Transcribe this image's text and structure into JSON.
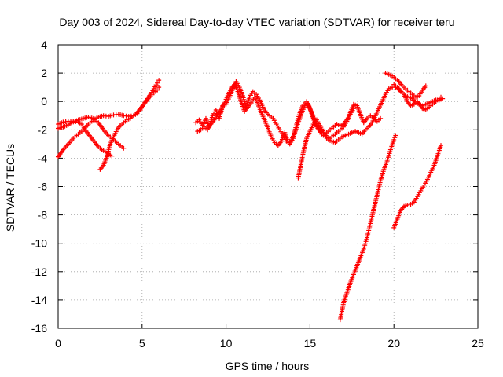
{
  "chart_data": {
    "type": "scatter",
    "title": "Day 003 of 2024, Sidereal Day-to-day VTEC variation (SDTVAR) for receiver teru",
    "xlabel": "GPS time / hours",
    "ylabel": "SDTVAR / TECUs",
    "xlim": [
      0,
      25
    ],
    "ylim": [
      -16,
      4
    ],
    "xticks": [
      0,
      5,
      10,
      15,
      20,
      25
    ],
    "yticks": [
      -16,
      -14,
      -12,
      -10,
      -8,
      -6,
      -4,
      -2,
      0,
      2,
      4
    ],
    "grid": true,
    "marker": "plus",
    "color": "#ff0000",
    "series": [
      {
        "points": [
          [
            0,
            -3.9
          ],
          [
            0.3,
            -3.4
          ],
          [
            0.6,
            -3.0
          ],
          [
            0.9,
            -2.6
          ],
          [
            1.2,
            -2.3
          ],
          [
            1.5,
            -2.0
          ],
          [
            1.8,
            -1.6
          ],
          [
            2.1,
            -1.3
          ],
          [
            2.4,
            -1.1
          ],
          [
            2.7,
            -1.0
          ],
          [
            3.0,
            -1.05
          ],
          [
            3.3,
            -0.95
          ],
          [
            3.6,
            -0.9
          ],
          [
            3.9,
            -1.0
          ],
          [
            4.2,
            -1.05
          ],
          [
            4.5,
            -1.0
          ],
          [
            4.7,
            -0.85
          ],
          [
            4.9,
            -0.6
          ],
          [
            5.1,
            -0.2
          ],
          [
            5.3,
            0.2
          ],
          [
            5.5,
            0.5
          ],
          [
            5.7,
            0.9
          ],
          [
            5.9,
            1.3
          ],
          [
            6.0,
            1.5
          ]
        ]
      },
      {
        "points": [
          [
            0,
            -1.6
          ],
          [
            0.3,
            -1.45
          ],
          [
            0.6,
            -1.4
          ],
          [
            0.9,
            -1.4
          ],
          [
            1.2,
            -1.45
          ],
          [
            1.4,
            -1.6
          ],
          [
            1.6,
            -2.0
          ],
          [
            1.8,
            -2.3
          ],
          [
            2.0,
            -2.6
          ],
          [
            2.2,
            -2.9
          ],
          [
            2.4,
            -3.2
          ],
          [
            2.6,
            -3.4
          ],
          [
            2.8,
            -3.55
          ],
          [
            3.0,
            -3.7
          ],
          [
            3.2,
            -3.85
          ]
        ]
      },
      {
        "points": [
          [
            0,
            -1.9
          ],
          [
            0.3,
            -1.8
          ],
          [
            0.6,
            -1.65
          ],
          [
            0.9,
            -1.45
          ],
          [
            1.2,
            -1.3
          ],
          [
            1.5,
            -1.2
          ],
          [
            1.8,
            -1.1
          ],
          [
            2.1,
            -1.2
          ],
          [
            2.4,
            -1.5
          ],
          [
            2.7,
            -2.0
          ],
          [
            3.0,
            -2.4
          ],
          [
            3.3,
            -2.7
          ],
          [
            3.6,
            -3.0
          ],
          [
            3.9,
            -3.3
          ]
        ]
      },
      {
        "points": [
          [
            2.5,
            -4.8
          ],
          [
            2.7,
            -4.5
          ],
          [
            2.9,
            -3.9
          ],
          [
            3.1,
            -3.0
          ],
          [
            3.3,
            -2.5
          ],
          [
            3.5,
            -2.0
          ],
          [
            3.7,
            -1.7
          ],
          [
            3.9,
            -1.5
          ],
          [
            4.1,
            -1.3
          ],
          [
            4.3,
            -1.2
          ],
          [
            4.5,
            -1.0
          ],
          [
            4.7,
            -0.8
          ],
          [
            4.9,
            -0.5
          ],
          [
            5.1,
            -0.2
          ],
          [
            5.3,
            0.1
          ],
          [
            5.5,
            0.4
          ],
          [
            5.7,
            0.6
          ],
          [
            5.9,
            0.8
          ],
          [
            6.0,
            1.0
          ]
        ]
      },
      {
        "points": [
          [
            8.2,
            -1.5
          ],
          [
            8.4,
            -1.3
          ],
          [
            8.6,
            -1.7
          ],
          [
            8.8,
            -1.2
          ],
          [
            9.0,
            -1.8
          ],
          [
            9.2,
            -1.0
          ],
          [
            9.4,
            -0.6
          ],
          [
            9.6,
            -1.2
          ],
          [
            9.8,
            -0.3
          ],
          [
            10.0,
            -0.2
          ],
          [
            10.2,
            0.3
          ],
          [
            10.4,
            0.9
          ],
          [
            10.6,
            1.4
          ],
          [
            10.8,
            1.0
          ],
          [
            11.0,
            0.4
          ],
          [
            11.2,
            -0.4
          ],
          [
            11.4,
            0.3
          ],
          [
            11.6,
            0.7
          ],
          [
            11.8,
            0.5
          ],
          [
            12.0,
            0.1
          ],
          [
            12.2,
            -0.4
          ],
          [
            12.4,
            -0.8
          ],
          [
            12.6,
            -1.0
          ],
          [
            12.8,
            -1.2
          ],
          [
            13.0,
            -1.6
          ],
          [
            13.2,
            -2.0
          ],
          [
            13.4,
            -2.4
          ],
          [
            13.6,
            -2.8
          ],
          [
            13.8,
            -3.0
          ],
          [
            14.0,
            -2.6
          ],
          [
            14.2,
            -1.6
          ],
          [
            14.4,
            -0.8
          ],
          [
            14.6,
            -0.2
          ],
          [
            14.8,
            0.0
          ],
          [
            15.0,
            -0.5
          ],
          [
            15.2,
            -1.2
          ],
          [
            15.4,
            -1.8
          ],
          [
            15.6,
            -2.1
          ],
          [
            15.8,
            -2.3
          ],
          [
            16.0,
            -2.2
          ],
          [
            16.2,
            -2.0
          ],
          [
            16.4,
            -1.8
          ],
          [
            16.6,
            -1.6
          ],
          [
            16.8,
            -1.7
          ],
          [
            17.0,
            -1.6
          ],
          [
            17.2,
            -1.3
          ],
          [
            17.4,
            -0.9
          ],
          [
            17.6,
            -0.5
          ]
        ]
      },
      {
        "points": [
          [
            8.3,
            -2.1
          ],
          [
            8.5,
            -2.0
          ],
          [
            8.7,
            -1.8
          ],
          [
            8.9,
            -2.0
          ],
          [
            9.1,
            -1.6
          ],
          [
            9.3,
            -1.3
          ],
          [
            9.5,
            -0.9
          ],
          [
            9.7,
            -0.6
          ],
          [
            9.9,
            -0.1
          ],
          [
            10.1,
            0.4
          ],
          [
            10.3,
            0.9
          ],
          [
            10.5,
            1.2
          ],
          [
            10.7,
            0.7
          ],
          [
            10.9,
            0.0
          ],
          [
            11.1,
            -0.7
          ],
          [
            11.3,
            -0.4
          ],
          [
            11.5,
            -0.1
          ],
          [
            11.7,
            0.3
          ],
          [
            11.9,
            -0.2
          ],
          [
            12.1,
            -0.8
          ],
          [
            12.3,
            -1.3
          ],
          [
            12.5,
            -1.9
          ],
          [
            12.7,
            -2.5
          ],
          [
            12.9,
            -2.9
          ],
          [
            13.1,
            -3.1
          ],
          [
            13.3,
            -2.8
          ],
          [
            13.5,
            -2.2
          ],
          [
            13.7,
            -2.9
          ],
          [
            13.9,
            -2.7
          ],
          [
            14.1,
            -2.2
          ],
          [
            14.3,
            -1.5
          ],
          [
            14.5,
            -0.8
          ],
          [
            14.7,
            -0.3
          ],
          [
            14.9,
            -0.2
          ],
          [
            15.1,
            -0.8
          ],
          [
            15.3,
            -1.4
          ],
          [
            15.5,
            -1.9
          ],
          [
            15.7,
            -2.3
          ],
          [
            15.9,
            -2.5
          ],
          [
            16.1,
            -2.7
          ],
          [
            16.3,
            -2.8
          ],
          [
            16.5,
            -2.9
          ],
          [
            16.7,
            -2.7
          ],
          [
            16.9,
            -2.5
          ],
          [
            17.1,
            -2.4
          ],
          [
            17.3,
            -2.3
          ],
          [
            17.5,
            -2.2
          ],
          [
            17.7,
            -2.1
          ],
          [
            17.9,
            -2.2
          ],
          [
            18.1,
            -2.3
          ],
          [
            18.3,
            -2.0
          ],
          [
            18.5,
            -1.8
          ],
          [
            18.7,
            -1.5
          ],
          [
            18.9,
            -1.0
          ],
          [
            19.1,
            -0.5
          ],
          [
            19.3,
            0.0
          ],
          [
            19.5,
            0.5
          ],
          [
            19.7,
            0.9
          ],
          [
            19.9,
            1.0
          ],
          [
            20.1,
            1.0
          ],
          [
            20.3,
            0.9
          ],
          [
            20.5,
            0.6
          ],
          [
            20.7,
            0.4
          ],
          [
            20.9,
            0.3
          ],
          [
            21.1,
            0.2
          ],
          [
            21.3,
            -0.1
          ],
          [
            21.5,
            -0.2
          ],
          [
            21.7,
            -0.3
          ],
          [
            21.9,
            -0.2
          ],
          [
            22.1,
            -0.1
          ],
          [
            22.3,
            0.0
          ],
          [
            22.5,
            0.1
          ],
          [
            22.7,
            0.1
          ],
          [
            22.9,
            0.2
          ]
        ]
      },
      {
        "points": [
          [
            14.3,
            -5.4
          ],
          [
            14.4,
            -4.8
          ],
          [
            14.5,
            -4.2
          ],
          [
            14.6,
            -3.6
          ],
          [
            14.7,
            -3.1
          ],
          [
            14.8,
            -2.6
          ],
          [
            15.0,
            -2.1
          ],
          [
            15.2,
            -1.6
          ],
          [
            15.4,
            -1.3
          ],
          [
            15.6,
            -1.7
          ],
          [
            15.8,
            -2.2
          ],
          [
            16.0,
            -2.5
          ],
          [
            16.2,
            -2.6
          ],
          [
            16.4,
            -2.4
          ],
          [
            16.6,
            -2.2
          ],
          [
            16.8,
            -2.0
          ],
          [
            17.0,
            -1.8
          ],
          [
            17.2,
            -1.4
          ],
          [
            17.4,
            -0.8
          ],
          [
            17.6,
            -0.2
          ],
          [
            17.8,
            -0.3
          ],
          [
            18.0,
            -0.9
          ],
          [
            18.2,
            -1.5
          ],
          [
            18.4,
            -1.2
          ],
          [
            18.6,
            -1.0
          ],
          [
            18.8,
            -1.2
          ],
          [
            19.0,
            -1.4
          ],
          [
            19.2,
            -1.2
          ]
        ]
      },
      {
        "points": [
          [
            16.8,
            -15.4
          ],
          [
            16.9,
            -14.8
          ],
          [
            17.0,
            -14.2
          ],
          [
            17.2,
            -13.5
          ],
          [
            17.4,
            -12.8
          ],
          [
            17.6,
            -12.2
          ],
          [
            17.8,
            -11.6
          ],
          [
            18.0,
            -11.0
          ],
          [
            18.2,
            -10.4
          ],
          [
            18.4,
            -9.6
          ],
          [
            18.6,
            -8.6
          ],
          [
            18.8,
            -7.6
          ],
          [
            19.0,
            -6.6
          ],
          [
            19.2,
            -5.6
          ],
          [
            19.4,
            -4.8
          ],
          [
            19.6,
            -4.2
          ],
          [
            19.8,
            -3.4
          ],
          [
            20.0,
            -2.7
          ],
          [
            20.1,
            -2.4
          ]
        ]
      },
      {
        "points": [
          [
            20.0,
            -8.9
          ],
          [
            20.2,
            -8.3
          ],
          [
            20.4,
            -7.7
          ],
          [
            20.6,
            -7.4
          ],
          [
            20.8,
            -7.3
          ],
          [
            21.0,
            -7.25
          ],
          [
            21.2,
            -7.1
          ],
          [
            21.4,
            -6.7
          ],
          [
            21.6,
            -6.3
          ],
          [
            21.8,
            -5.9
          ],
          [
            22.0,
            -5.5
          ],
          [
            22.2,
            -5.0
          ],
          [
            22.4,
            -4.5
          ],
          [
            22.6,
            -3.8
          ],
          [
            22.8,
            -3.1
          ]
        ]
      },
      {
        "points": [
          [
            19.5,
            2.0
          ],
          [
            19.7,
            1.9
          ],
          [
            19.9,
            1.8
          ],
          [
            20.1,
            1.6
          ],
          [
            20.3,
            1.4
          ],
          [
            20.5,
            1.1
          ],
          [
            20.7,
            0.9
          ],
          [
            20.9,
            0.7
          ],
          [
            21.1,
            0.5
          ],
          [
            21.3,
            0.3
          ],
          [
            21.5,
            0.4
          ],
          [
            21.7,
            0.8
          ],
          [
            21.9,
            1.1
          ]
        ]
      },
      {
        "points": [
          [
            20.0,
            1.2
          ],
          [
            20.2,
            1.0
          ],
          [
            20.4,
            0.7
          ],
          [
            20.6,
            0.5
          ],
          [
            20.8,
            0.0
          ],
          [
            21.0,
            -0.3
          ],
          [
            21.2,
            -0.2
          ],
          [
            21.4,
            0.0
          ],
          [
            21.6,
            -0.3
          ],
          [
            21.8,
            -0.6
          ],
          [
            22.0,
            -0.5
          ],
          [
            22.2,
            -0.3
          ],
          [
            22.4,
            -0.1
          ],
          [
            22.6,
            0.1
          ],
          [
            22.8,
            0.3
          ]
        ]
      }
    ]
  }
}
